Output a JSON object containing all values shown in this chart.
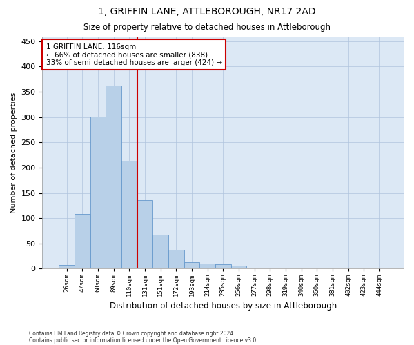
{
  "title1": "1, GRIFFIN LANE, ATTLEBOROUGH, NR17 2AD",
  "title2": "Size of property relative to detached houses in Attleborough",
  "xlabel": "Distribution of detached houses by size in Attleborough",
  "ylabel": "Number of detached properties",
  "bar_labels": [
    "26sqm",
    "47sqm",
    "68sqm",
    "89sqm",
    "110sqm",
    "131sqm",
    "151sqm",
    "172sqm",
    "193sqm",
    "214sqm",
    "235sqm",
    "256sqm",
    "277sqm",
    "298sqm",
    "319sqm",
    "340sqm",
    "360sqm",
    "381sqm",
    "402sqm",
    "423sqm",
    "444sqm"
  ],
  "bar_values": [
    8,
    108,
    301,
    362,
    213,
    136,
    68,
    38,
    13,
    10,
    9,
    6,
    2,
    0,
    2,
    0,
    0,
    0,
    0,
    2,
    0
  ],
  "bar_color": "#b8d0e8",
  "bar_edge_color": "#6699cc",
  "vline_x": 4.5,
  "vline_color": "#cc0000",
  "annotation_text": "1 GRIFFIN LANE: 116sqm\n← 66% of detached houses are smaller (838)\n33% of semi-detached houses are larger (424) →",
  "annotation_box_color": "#ffffff",
  "annotation_box_edge": "#cc0000",
  "ylim": [
    0,
    460
  ],
  "yticks": [
    0,
    50,
    100,
    150,
    200,
    250,
    300,
    350,
    400,
    450
  ],
  "footer1": "Contains HM Land Registry data © Crown copyright and database right 2024.",
  "footer2": "Contains public sector information licensed under the Open Government Licence v3.0.",
  "bg_color": "#ffffff",
  "plot_bg_color": "#dce8f5",
  "grid_color": "#b0c4de"
}
